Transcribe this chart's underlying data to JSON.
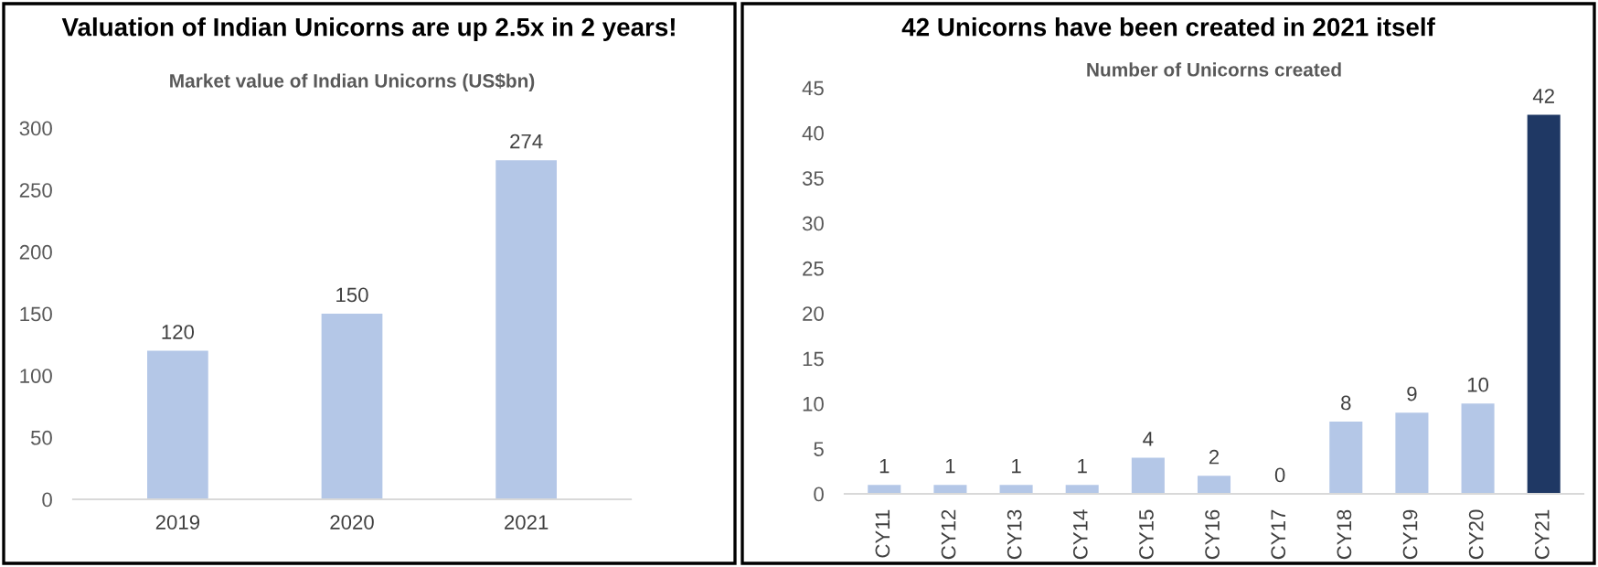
{
  "chart_data": [
    {
      "type": "bar",
      "title": "Valuation of Indian Unicorns are up 2.5x in 2 years!",
      "subtitle": "Market value of Indian Unicorns (US$bn)",
      "categories": [
        "2019",
        "2020",
        "2021"
      ],
      "values": [
        120,
        150,
        274
      ],
      "color": "#b4c7e7",
      "ylim": [
        0,
        300
      ],
      "yticks": [
        0,
        50,
        100,
        150,
        200,
        250,
        300
      ],
      "data_labels": true,
      "grid": false,
      "legend": false
    },
    {
      "type": "bar",
      "title": "42 Unicorns have been created in 2021 itself",
      "subtitle": "Number of Unicorns created",
      "categories": [
        "CY11",
        "CY12",
        "CY13",
        "CY14",
        "CY15",
        "CY16",
        "CY17",
        "CY18",
        "CY19",
        "CY20",
        "CY21"
      ],
      "values": [
        1,
        1,
        1,
        1,
        4,
        2,
        0,
        8,
        9,
        10,
        42
      ],
      "colors": [
        "#b4c7e7",
        "#b4c7e7",
        "#b4c7e7",
        "#b4c7e7",
        "#b4c7e7",
        "#b4c7e7",
        "#b4c7e7",
        "#b4c7e7",
        "#b4c7e7",
        "#b4c7e7",
        "#1f3864"
      ],
      "ylim": [
        0,
        45
      ],
      "yticks": [
        0,
        5,
        10,
        15,
        20,
        25,
        30,
        35,
        40,
        45
      ],
      "data_labels": true,
      "grid": false,
      "legend": false
    }
  ]
}
